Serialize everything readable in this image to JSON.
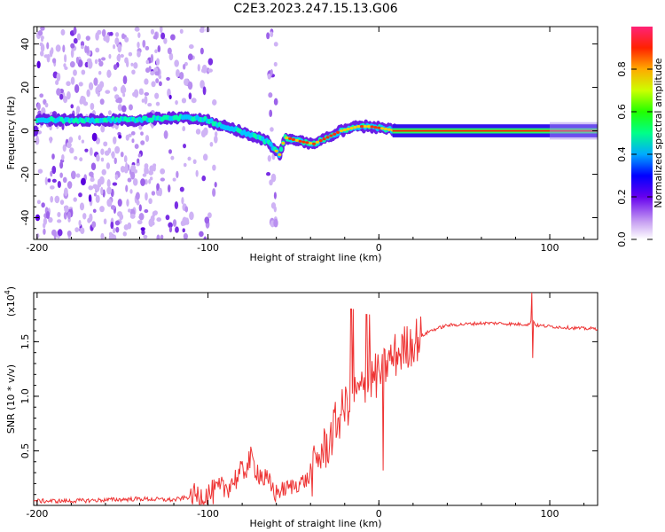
{
  "title": "C2E3.2023.247.15.13.G06",
  "colors": {
    "snr_line": "#ee3333",
    "grid": "#000000"
  },
  "chart_data": [
    {
      "type": "heatmap",
      "xlabel": "Height of straight line (km)",
      "ylabel": "Frequency (Hz)",
      "xlim": [
        -202,
        128
      ],
      "ylim": [
        -50,
        48
      ],
      "xticks": [
        "-200",
        "-100",
        "0",
        "100"
      ],
      "yticks": [
        "40",
        "20",
        "0",
        "-20",
        "-40"
      ],
      "colorbar": {
        "label": "Normalized spectral amplitude",
        "range": [
          0,
          1
        ],
        "ticks": [
          "0.0",
          "0.2",
          "0.4",
          "0.6",
          "0.8"
        ]
      },
      "ridge": [
        {
          "x": -200,
          "y": 5
        },
        {
          "x": -180,
          "y": 5
        },
        {
          "x": -160,
          "y": 5
        },
        {
          "x": -140,
          "y": 5
        },
        {
          "x": -125,
          "y": 6
        },
        {
          "x": -110,
          "y": 6
        },
        {
          "x": -100,
          "y": 5
        },
        {
          "x": -95,
          "y": 3
        },
        {
          "x": -85,
          "y": 1
        },
        {
          "x": -75,
          "y": -2
        },
        {
          "x": -65,
          "y": -5
        },
        {
          "x": -58,
          "y": -11
        },
        {
          "x": -55,
          "y": -3
        },
        {
          "x": -45,
          "y": -5
        },
        {
          "x": -38,
          "y": -6
        },
        {
          "x": -30,
          "y": -3
        },
        {
          "x": -22,
          "y": 0
        },
        {
          "x": -12,
          "y": 2
        },
        {
          "x": -5,
          "y": 2
        },
        {
          "x": 3,
          "y": 1
        },
        {
          "x": 10,
          "y": 0
        },
        {
          "x": 50,
          "y": 0
        },
        {
          "x": 90,
          "y": 0
        },
        {
          "x": 128,
          "y": 0
        }
      ]
    },
    {
      "type": "line",
      "xlabel": "Height of straight line (km)",
      "ylabel": "SNR (10 * v/v)",
      "yscale_label": "(x10",
      "yscale_exp": "4",
      "xlim": [
        -202,
        128
      ],
      "ylim": [
        0,
        1.95
      ],
      "xticks": [
        "-200",
        "-100",
        "0",
        "100"
      ],
      "yticks": [
        "0.5",
        "1.0",
        "1.5"
      ],
      "series": [
        {
          "x": [
            -202,
            -180,
            -160,
            -140,
            -120,
            -110,
            -100,
            -90,
            -80,
            -75,
            -70,
            -65,
            -60,
            -50,
            -40,
            -35,
            -30,
            -25,
            -20,
            -15,
            -10,
            -5,
            0,
            5,
            10,
            20,
            30,
            40,
            50,
            60,
            70,
            80,
            88,
            90,
            92,
            100,
            110,
            120,
            128
          ],
          "y": [
            0.04,
            0.04,
            0.05,
            0.06,
            0.05,
            0.08,
            0.1,
            0.16,
            0.3,
            0.42,
            0.3,
            0.2,
            0.12,
            0.18,
            0.25,
            0.45,
            0.55,
            0.75,
            0.9,
            1.0,
            1.05,
            1.15,
            1.2,
            1.3,
            1.38,
            1.5,
            1.6,
            1.65,
            1.66,
            1.67,
            1.67,
            1.66,
            1.66,
            1.7,
            1.65,
            1.64,
            1.63,
            1.62,
            1.62
          ]
        }
      ]
    }
  ]
}
